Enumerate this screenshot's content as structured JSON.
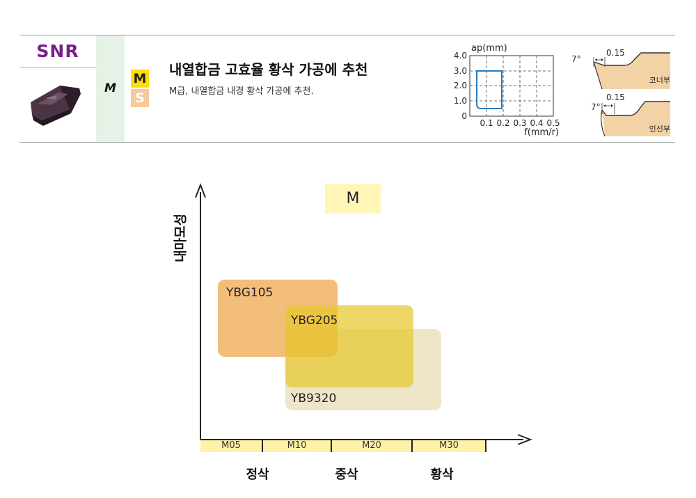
{
  "product": {
    "code": "SNR",
    "class_letter": "M",
    "badges": [
      "M",
      "S"
    ],
    "title": "내열합금 고효율 황삭 가공에 추천",
    "description": "M급, 내열합금 내경 황삭 가공에 추천."
  },
  "cutting_range_chart": {
    "ylabel": "ap(mm)",
    "xlabel": "f(mm/r)",
    "y_ticks": [
      "4.0",
      "3.0",
      "2.0",
      "1.0",
      "0"
    ],
    "x_ticks": [
      "0.1",
      "0.2",
      "0.3",
      "0.4",
      "0.5"
    ]
  },
  "edge_detail": {
    "corner": {
      "angle": "7°",
      "land": "0.15",
      "label": "코너부"
    },
    "inset": {
      "angle": "7°",
      "land": "0.15",
      "label": "인선부"
    }
  },
  "diagram": {
    "legend": "M",
    "ylabel": "내마모성",
    "zones": [
      "YBG105",
      "YBG205",
      "YB9320"
    ],
    "iso_ticks": [
      "M05",
      "M10",
      "M20",
      "M30"
    ],
    "grades": [
      "정삭",
      "중삭",
      "황삭"
    ]
  },
  "colors": {
    "code": "#7a1f8a",
    "badge_m": "#ffde00",
    "badge_s": "#f8c89e",
    "class_column": "#e6f2e6",
    "legend_box": "#fff6b8",
    "ybg105": "#f0aa55",
    "ybg205": "#e8c82d",
    "yb9320": "#ded096",
    "axis_band": "#fff2a8",
    "range_outline": "#2b7bbf",
    "edge_fill": "#f3d3a6"
  }
}
